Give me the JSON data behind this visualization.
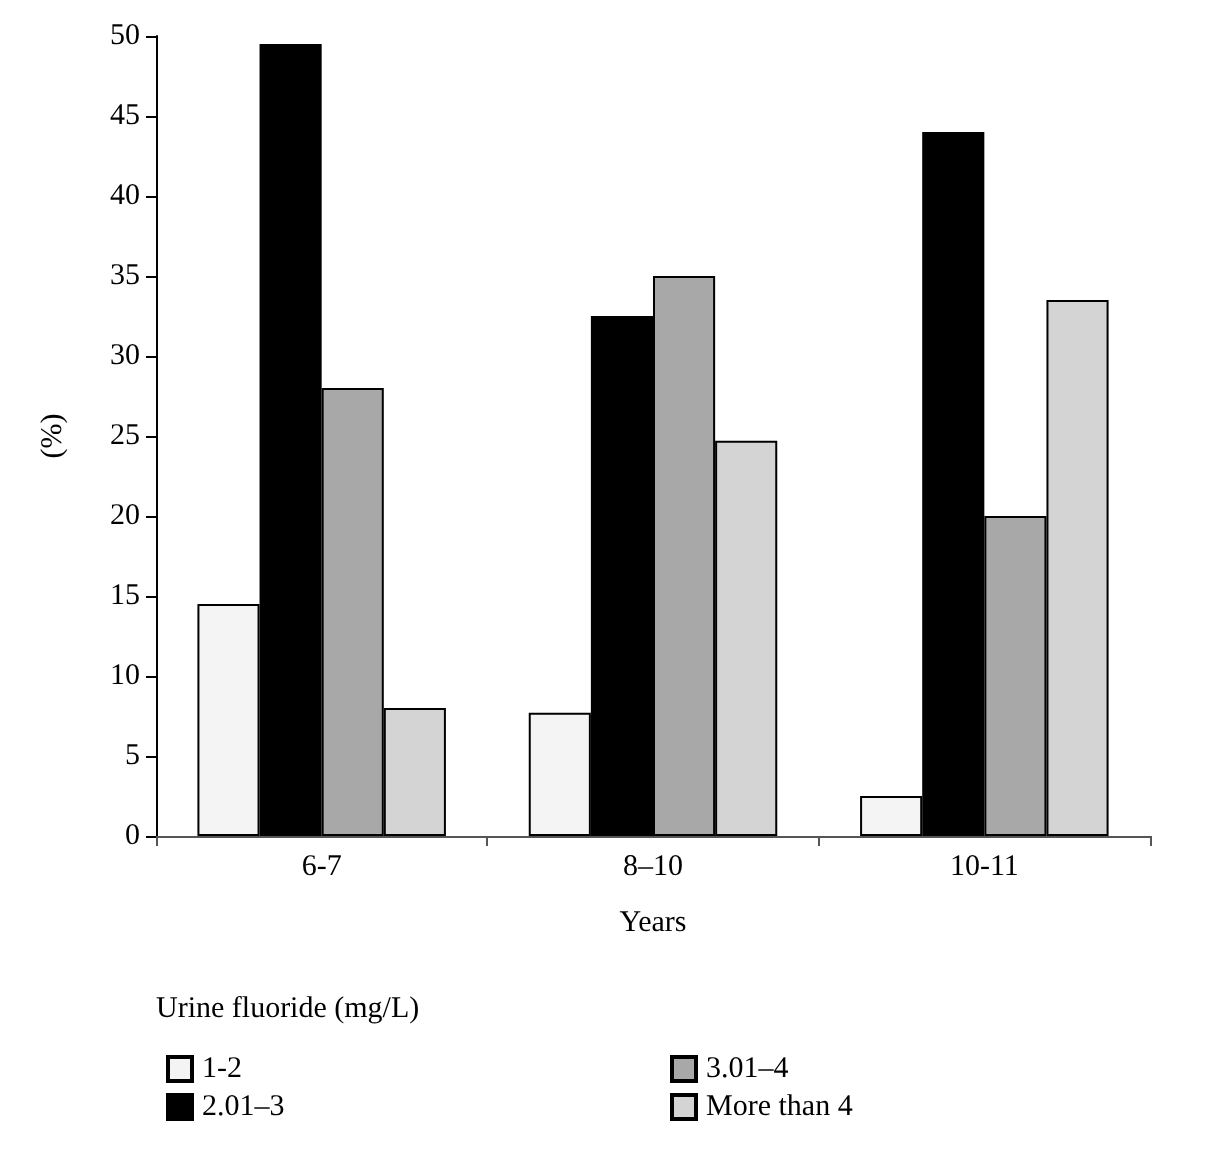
{
  "chart_data": {
    "type": "bar",
    "xlabel": "Years",
    "ylabel": "(%)",
    "legend_title": "Urine fluoride (mg/L)",
    "categories": [
      "6-7",
      "8–10",
      "10-11"
    ],
    "series": [
      {
        "name": "1-2",
        "color": "#f4f4f4",
        "values": [
          14.5,
          7.7,
          2.5
        ]
      },
      {
        "name": "2.01–3",
        "color": "#000000",
        "values": [
          49.5,
          32.5,
          44
        ]
      },
      {
        "name": "3.01–4",
        "color": "#a8a8a8",
        "values": [
          28,
          35,
          20
        ]
      },
      {
        "name": "More than 4",
        "color": "#d4d4d4",
        "values": [
          8,
          24.7,
          33.5
        ]
      }
    ],
    "ylim": [
      0,
      50
    ],
    "yticks": [
      0,
      5,
      10,
      15,
      20,
      25,
      30,
      35,
      40,
      45,
      50
    ],
    "grid": false,
    "legend": "bottom"
  }
}
